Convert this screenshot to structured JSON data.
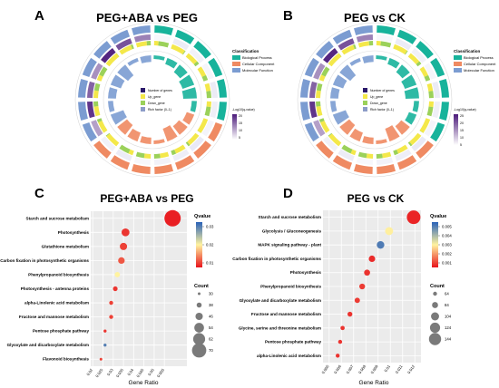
{
  "panels": [
    {
      "letter": "A",
      "title": "PEG+ABA vs PEG",
      "type": "circos",
      "classification": {
        "title": "Classification",
        "items": [
          "Biological Process",
          "Cellular Component",
          "Molecular Function"
        ],
        "colors": [
          "#17b39b",
          "#ef8a62",
          "#7b9cd1"
        ]
      },
      "inner_legend": [
        "Number of genes",
        "Up_gene",
        "Down_gene",
        "Rich factor (0–1)"
      ],
      "scale_label": "-Log10(q-value)",
      "scale_ticks": [
        "20",
        "15",
        "10",
        "5"
      ]
    },
    {
      "letter": "B",
      "title": "PEG vs CK",
      "type": "circos",
      "classification": {
        "title": "Classification",
        "items": [
          "Biological Process",
          "Cellular Component",
          "Molecular Function"
        ],
        "colors": [
          "#17b39b",
          "#ef8a62",
          "#7b9cd1"
        ]
      },
      "inner_legend": [
        "Number of genes",
        "Up_gene",
        "Down_gene",
        "Rich factor (0–1)"
      ],
      "scale_label": "-Log10(q-value)",
      "scale_ticks": [
        "25",
        "20",
        "15",
        "10",
        "5"
      ]
    }
  ],
  "chart_data": [
    {
      "panel": "C",
      "type": "scatter",
      "title": "PEG+ABA vs PEG",
      "xlabel": "Gene Ratio",
      "ylabel": "",
      "categories": [
        "Starch and sucrose metabolism",
        "Photosynthesis",
        "Glutathione metabolism",
        "Carbon fixation in photosynthetic organisms",
        "Phenylpropanoid biosynthesis",
        "Photosynthesis - antenna proteins",
        "alpha-Linolenic acid metabolism",
        "Fructose and mannose metabolism",
        "Pentose phosphate pathway",
        "Glyoxylate and dicarboxylate metabolism",
        "Flavonoid biosynthesis"
      ],
      "x": [
        0.059,
        0.036,
        0.035,
        0.034,
        0.032,
        0.031,
        0.029,
        0.029,
        0.026,
        0.026,
        0.024
      ],
      "count": [
        72,
        46,
        44,
        42,
        38,
        36,
        34,
        34,
        31,
        31,
        30
      ],
      "qvalue": [
        0.001,
        0.003,
        0.004,
        0.006,
        0.02,
        0.003,
        0.004,
        0.004,
        0.003,
        0.036,
        0.004
      ],
      "xlim": [
        0.019,
        0.066
      ],
      "xticks": [
        "0.02",
        "0.025",
        "0.03",
        "0.035",
        "0.04",
        "0.045",
        "0.05",
        "0.055"
      ],
      "colorbar": {
        "label": "Qvalue",
        "ticks": [
          "0.03",
          "0.02",
          "0.01"
        ],
        "range": [
          0,
          0.04
        ]
      },
      "size_legend": {
        "label": "Count",
        "values": [
          "30",
          "38",
          "46",
          "54",
          "62",
          "70"
        ]
      }
    },
    {
      "panel": "D",
      "type": "scatter",
      "title": "PEG vs CK",
      "xlabel": "Gene Ratio",
      "ylabel": "",
      "categories": [
        "Starch and sucrose metabolism",
        "Glycolysis / Gluconeogenesis",
        "MAPK signaling pathway - plant",
        "Carbon fixation in photosynthetic organisms",
        "Photosynthesis",
        "Phenylpropanoid biosynthesis",
        "Glyoxylate and dicarboxylate metabolism",
        "Fructose and mannose metabolism",
        "Glycine, serine and threonine metabolism",
        "Pentose phosphate pathway",
        "alpha-Linolenic acid metabolism"
      ],
      "x": [
        0.0119,
        0.0099,
        0.0092,
        0.0085,
        0.0081,
        0.0077,
        0.0073,
        0.0067,
        0.0061,
        0.0059,
        0.0057
      ],
      "count": [
        150,
        100,
        96,
        86,
        82,
        80,
        76,
        72,
        66,
        64,
        64
      ],
      "qvalue": [
        0.0002,
        0.0028,
        0.0052,
        0.0003,
        0.0004,
        0.0005,
        0.0005,
        0.0004,
        0.0004,
        0.0004,
        0.0004
      ],
      "xlim": [
        0.0045,
        0.0125
      ],
      "xticks": [
        "0.005",
        "0.006",
        "0.007",
        "0.008",
        "0.009",
        "0.01",
        "0.011",
        "0.012"
      ],
      "colorbar": {
        "label": "Qvalue",
        "ticks": [
          "0.005",
          "0.004",
          "0.003",
          "0.002",
          "0.001"
        ],
        "range": [
          0,
          0.0057
        ]
      },
      "size_legend": {
        "label": "Count",
        "values": [
          "64",
          "84",
          "104",
          "124",
          "144"
        ]
      }
    }
  ]
}
